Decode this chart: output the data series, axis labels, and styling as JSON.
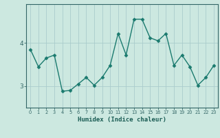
{
  "xlabel": "Humidex (Indice chaleur)",
  "x_values": [
    0,
    1,
    2,
    3,
    4,
    5,
    6,
    7,
    8,
    9,
    10,
    11,
    12,
    13,
    14,
    15,
    16,
    17,
    18,
    19,
    20,
    21,
    22,
    23
  ],
  "y_values": [
    3.85,
    3.45,
    3.65,
    3.72,
    2.88,
    2.9,
    3.05,
    3.2,
    3.02,
    3.2,
    3.48,
    4.22,
    3.72,
    4.55,
    4.55,
    4.12,
    4.05,
    4.22,
    3.48,
    3.72,
    3.45,
    3.02,
    3.2,
    3.48
  ],
  "line_color": "#1a7a6e",
  "marker_color": "#1a7a6e",
  "bg_color": "#cce8e0",
  "grid_color": "#aacccc",
  "axis_color": "#336666",
  "tick_label_color": "#1a5c54",
  "ylim": [
    2.5,
    4.9
  ],
  "yticks": [
    3,
    4
  ],
  "xlim": [
    -0.5,
    23.5
  ]
}
